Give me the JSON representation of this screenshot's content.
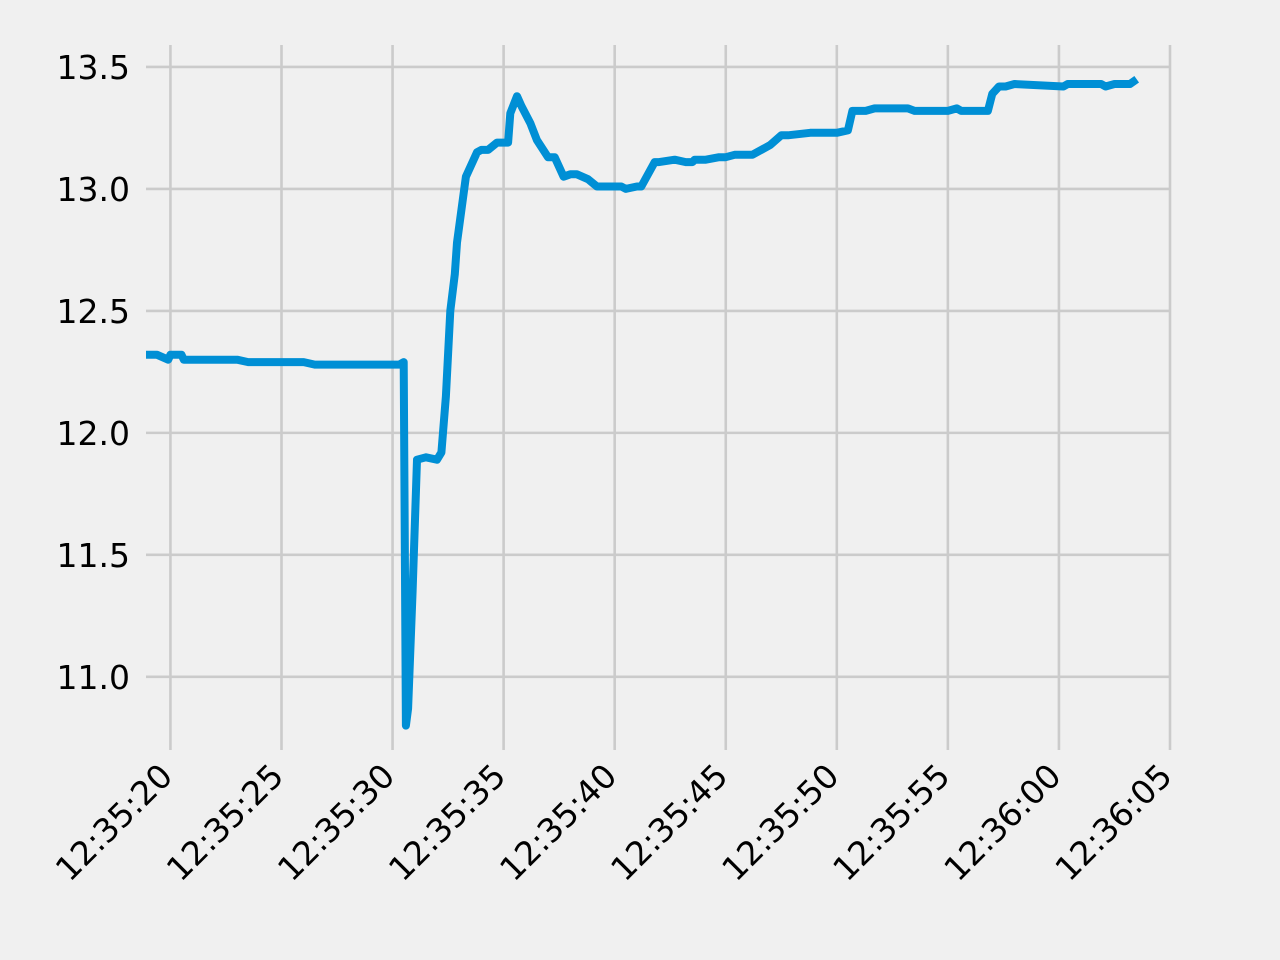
{
  "chart_data": {
    "type": "line",
    "title": "",
    "xlabel": "",
    "ylabel": "",
    "x_axis_type": "time",
    "xlim": [
      "12:35:18.9",
      "12:36:05"
    ],
    "ylim": [
      10.7,
      13.59
    ],
    "grid": true,
    "legend": "none",
    "colors": {
      "background": "#f0f0f0",
      "grid": "#cbcbcb",
      "series": "#008fd5"
    },
    "x_ticks": [
      "12:35:20",
      "12:35:25",
      "12:35:30",
      "12:35:35",
      "12:35:40",
      "12:35:45",
      "12:35:50",
      "12:35:55",
      "12:36:00",
      "12:36:05"
    ],
    "y_ticks": [
      "11.0",
      "11.5",
      "12.0",
      "12.5",
      "13.0",
      "13.5"
    ],
    "series": [
      {
        "color": "#008fd5",
        "x": [
          "12:35:18.9",
          "12:35:19.4",
          "12:35:19.9",
          "12:35:20.0",
          "12:35:20.5",
          "12:35:20.6",
          "12:35:21.5",
          "12:35:22.0",
          "12:35:23.0",
          "12:35:23.5",
          "12:35:25.0",
          "12:35:26.0",
          "12:35:26.5",
          "12:35:27.0",
          "12:35:28.0",
          "12:35:29.0",
          "12:35:30.0",
          "12:35:30.3",
          "12:35:30.5",
          "12:35:30.6",
          "12:35:30.7",
          "12:35:30.9",
          "12:35:31.1",
          "12:35:31.5",
          "12:35:32.0",
          "12:35:32.2",
          "12:35:32.4",
          "12:35:32.6",
          "12:35:32.8",
          "12:35:32.9",
          "12:35:33.3",
          "12:35:33.8",
          "12:35:34.0",
          "12:35:34.3",
          "12:35:34.7",
          "12:35:35.2",
          "12:35:35.3",
          "12:35:35.6",
          "12:35:35.8",
          "12:35:36.2",
          "12:35:36.5",
          "12:35:37.0",
          "12:35:37.3",
          "12:35:37.7",
          "12:35:38.0",
          "12:35:38.1",
          "12:35:38.3",
          "12:35:38.8",
          "12:35:39.2",
          "12:35:39.5",
          "12:35:39.6",
          "12:35:40.3",
          "12:35:40.5",
          "12:35:41.0",
          "12:35:41.2",
          "12:35:41.8",
          "12:35:42.0",
          "12:35:42.7",
          "12:35:43.2",
          "12:35:43.5",
          "12:35:43.6",
          "12:35:44.0",
          "12:35:44.1",
          "12:35:44.7",
          "12:35:45.0",
          "12:35:45.4",
          "12:35:45.7",
          "12:35:46.0",
          "12:35:46.2",
          "12:35:47.0",
          "12:35:47.5",
          "12:35:47.8",
          "12:35:48.8",
          "12:35:49.0",
          "12:35:49.4",
          "12:35:50.0",
          "12:35:50.5",
          "12:35:50.7",
          "12:35:51.3",
          "12:35:51.7",
          "12:35:52.0",
          "12:35:53.2",
          "12:35:53.5",
          "12:35:53.8",
          "12:35:55.0",
          "12:35:55.4",
          "12:35:55.6",
          "12:35:56.0",
          "12:35:56.5",
          "12:35:56.8",
          "12:35:57.0",
          "12:35:57.3",
          "12:35:57.6",
          "12:35:58.0",
          "12:36:00.2",
          "12:36:00.4",
          "12:36:01.9",
          "12:36:02.1",
          "12:36:02.5",
          "12:36:03.2",
          "12:36:03.5"
        ],
        "y": [
          12.32,
          12.32,
          12.3,
          12.32,
          12.32,
          12.3,
          12.3,
          12.3,
          12.3,
          12.29,
          12.29,
          12.29,
          12.28,
          12.28,
          12.28,
          12.28,
          12.28,
          12.28,
          12.29,
          10.8,
          10.87,
          11.35,
          11.89,
          11.9,
          11.89,
          11.92,
          12.15,
          12.5,
          12.65,
          12.78,
          13.05,
          13.15,
          13.16,
          13.16,
          13.19,
          13.19,
          13.31,
          13.38,
          13.34,
          13.27,
          13.2,
          13.13,
          13.13,
          13.05,
          13.06,
          13.06,
          13.06,
          13.04,
          13.01,
          13.01,
          13.01,
          13.01,
          13.0,
          13.01,
          13.01,
          13.11,
          13.11,
          13.12,
          13.11,
          13.11,
          13.12,
          13.12,
          13.12,
          13.13,
          13.13,
          13.14,
          13.14,
          13.14,
          13.14,
          13.18,
          13.22,
          13.22,
          13.23,
          13.23,
          13.23,
          13.23,
          13.24,
          13.32,
          13.32,
          13.33,
          13.33,
          13.33,
          13.32,
          13.32,
          13.32,
          13.33,
          13.32,
          13.32,
          13.32,
          13.32,
          13.39,
          13.42,
          13.42,
          13.43,
          13.42,
          13.43,
          13.43,
          13.42,
          13.43,
          13.43,
          13.45
        ]
      }
    ]
  }
}
